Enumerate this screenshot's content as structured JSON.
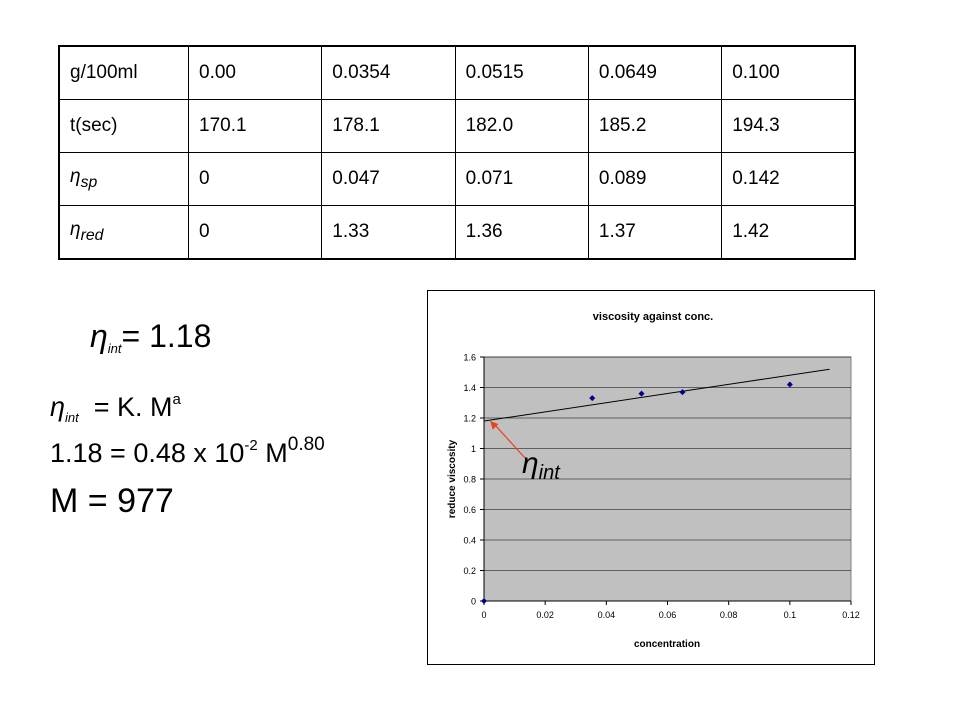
{
  "table": {
    "header_label": "g/100ml",
    "header_values": [
      "0.00",
      "0.0354",
      "0.0515",
      "0.0649",
      "0.100"
    ],
    "rows": [
      {
        "label": "t(sec)",
        "label_main": "",
        "label_sub": "",
        "values": [
          "170.1",
          "178.1",
          "182.0",
          "185.2",
          "194.3"
        ]
      },
      {
        "label": "",
        "label_main": "η",
        "label_sub": "sp",
        "values": [
          "0",
          "0.047",
          "0.071",
          "0.089",
          "0.142"
        ]
      },
      {
        "label": "",
        "label_main": "η",
        "label_sub": "red",
        "values": [
          "0",
          "1.33",
          "1.36",
          "1.37",
          "1.42"
        ]
      }
    ]
  },
  "formulas": {
    "line1": {
      "symbol": "η",
      "sub": "int",
      "rest": "= 1.18"
    },
    "line2": {
      "symbol": "η",
      "sub": "int",
      "rest": "  = K. M",
      "sup": "a"
    },
    "line3": {
      "text": "1.18 = 0.48 x 10",
      "sup": "-2",
      "mid": " M",
      "sup2": "0.80"
    },
    "line4": {
      "text": "M = 977"
    }
  },
  "chart_data": {
    "type": "scatter",
    "title": "viscosity against conc.",
    "xlabel": "concentration",
    "ylabel": "reduce viscosity",
    "xlim": [
      0,
      0.12
    ],
    "ylim": [
      0,
      1.6
    ],
    "x_ticks": [
      "0",
      "0.02",
      "0.04",
      "0.06",
      "0.08",
      "0.1",
      "0.12"
    ],
    "y_ticks": [
      "0",
      "0.2",
      "0.4",
      "0.6",
      "0.8",
      "1",
      "1.2",
      "1.4",
      "1.6"
    ],
    "grid": true,
    "series": [
      {
        "x": [
          0,
          0.0354,
          0.0515,
          0.0649,
          0.1
        ],
        "y": [
          0,
          1.33,
          1.36,
          1.37,
          1.42
        ],
        "color": "#00008B"
      }
    ],
    "trendline": {
      "x": [
        0,
        0.113
      ],
      "y": [
        1.18,
        1.52
      ],
      "color": "#000000"
    },
    "annotation": {
      "symbol": "η",
      "sub": "int",
      "arrow_color": "#E8431A",
      "points_to": [
        0.002,
        1.18
      ]
    },
    "plot_bg": "#C0C0C0"
  }
}
